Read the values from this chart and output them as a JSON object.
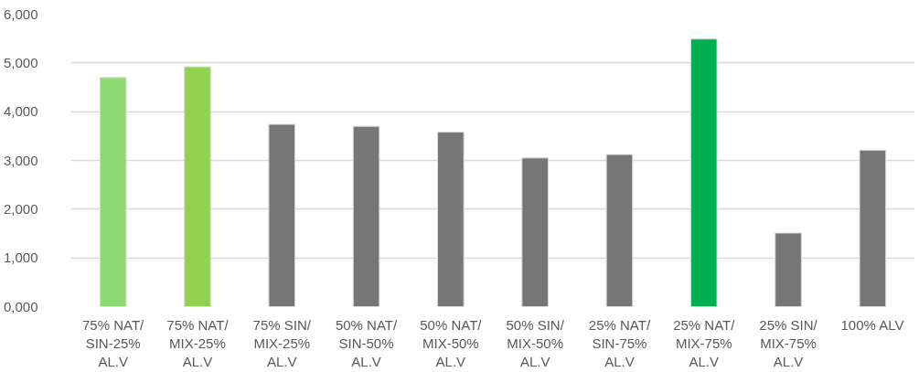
{
  "chart_data": {
    "type": "bar",
    "categories": [
      "75% NAT/SIN-25% AL.V",
      "75% NAT/MIX-25% AL.V",
      "75% SIN/MIX-25% AL.V",
      "50% NAT/SIN-50% AL.V",
      "50% NAT/MIX-50% AL.V",
      "50% SIN/MIX-50% AL.V",
      "25% NAT/SIN-75% AL.V",
      "25% NAT/MIX-75% AL.V",
      "25% SIN/MIX-75% AL.V",
      "100% ALV"
    ],
    "values": [
      4700,
      4920,
      3740,
      3700,
      3580,
      3050,
      3120,
      5490,
      1510,
      3210
    ],
    "colors": [
      "#8fd973",
      "#92d050",
      "#767676",
      "#767676",
      "#767676",
      "#767676",
      "#767676",
      "#00b050",
      "#767676",
      "#767676"
    ],
    "ylim": [
      0,
      6000
    ],
    "yticks": [
      {
        "value": 0,
        "label": "0,000"
      },
      {
        "value": 1000,
        "label": "1,000"
      },
      {
        "value": 2000,
        "label": "2,000"
      },
      {
        "value": 3000,
        "label": "3,000"
      },
      {
        "value": 4000,
        "label": "4,000"
      },
      {
        "value": 5000,
        "label": "5,000"
      },
      {
        "value": 6000,
        "label": "6,000"
      }
    ],
    "grid": "y"
  }
}
